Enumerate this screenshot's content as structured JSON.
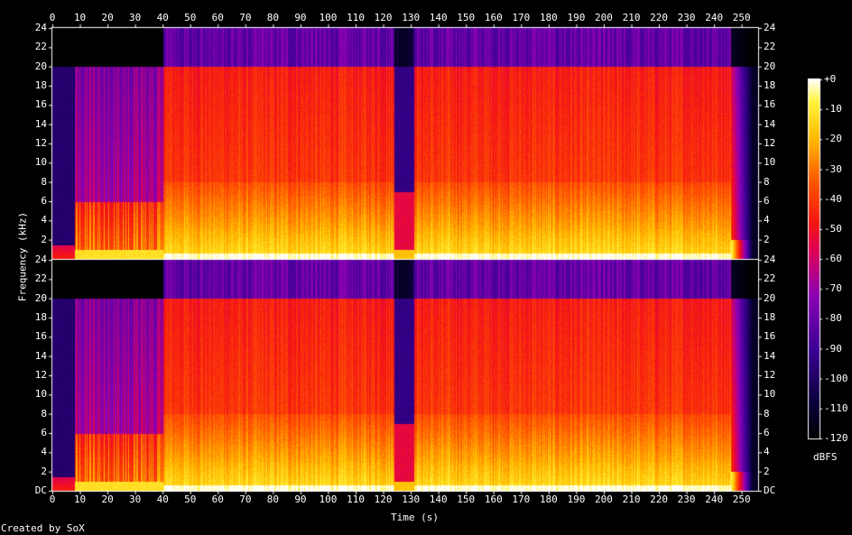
{
  "chart_data": {
    "type": "heatmap",
    "xlabel": "Time (s)",
    "ylabel": "Frequency (kHz)",
    "footer": "Created by SoX",
    "colorbar_label": "dBFS",
    "x_ticks": [
      0,
      10,
      20,
      30,
      40,
      50,
      60,
      70,
      80,
      90,
      100,
      110,
      120,
      130,
      140,
      150,
      160,
      170,
      180,
      190,
      200,
      210,
      220,
      230,
      240,
      250
    ],
    "xlim": [
      0,
      256
    ],
    "channels": [
      {
        "name": "",
        "y_ticks": [
          "24",
          "22",
          "20",
          "18",
          "16",
          "14",
          "12",
          "10",
          "8",
          "6",
          "4",
          "2"
        ]
      },
      {
        "name": "",
        "y_ticks": [
          "24",
          "22",
          "20",
          "18",
          "16",
          "14",
          "12",
          "10",
          "8",
          "6",
          "4",
          "2",
          "DC"
        ]
      }
    ],
    "ylim_khz": [
      0,
      24
    ],
    "colorbar_ticks": [
      "+0",
      "-10",
      "-20",
      "-30",
      "-40",
      "-50",
      "-60",
      "-70",
      "-80",
      "-90",
      "-100",
      "-110",
      "-120"
    ],
    "colorbar_range_db": [
      -120,
      0
    ],
    "segments_seconds": [
      {
        "start": 0,
        "end": 8,
        "character": "very quiet intro, low frequencies only"
      },
      {
        "start": 8,
        "end": 40,
        "character": "sparse transients, energy mostly below 6 kHz, band-limited at 20 kHz"
      },
      {
        "start": 40,
        "end": 124,
        "character": "loud full-band music"
      },
      {
        "start": 124,
        "end": 131,
        "character": "quiet break"
      },
      {
        "start": 131,
        "end": 246,
        "character": "loud full-band music"
      },
      {
        "start": 246,
        "end": 253,
        "character": "fade out"
      }
    ]
  }
}
